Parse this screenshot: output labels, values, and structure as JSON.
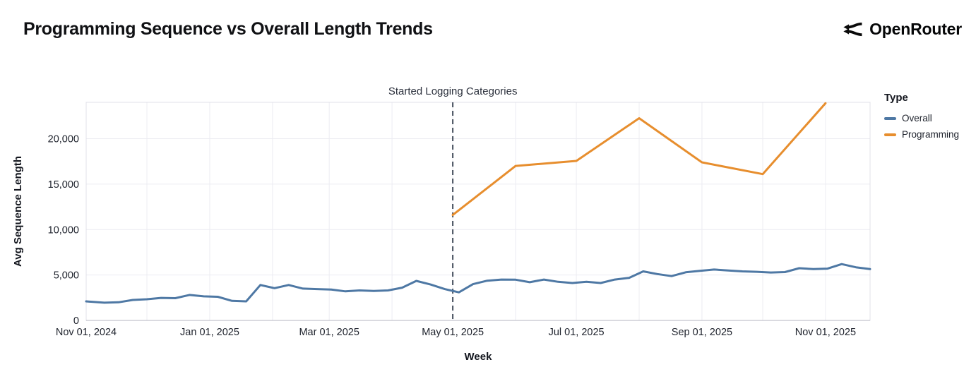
{
  "header": {
    "title": "Programming Sequence vs Overall Length Trends",
    "brand": "OpenRouter"
  },
  "colors": {
    "overall": "#4e78a4",
    "programming": "#e78e2e",
    "annotation_line": "#2d3848",
    "grid": "#ececf2",
    "plot_border": "#e0e0e8",
    "axis_line": "#c4c4ce",
    "text": "#1e222c"
  },
  "chart_data": {
    "type": "line",
    "title": "Programming Sequence vs Overall Length Trends",
    "xlabel": "Week",
    "ylabel": "Avg Sequence Length",
    "grid": true,
    "x_domain": [
      "2024-11-01",
      "2025-11-23"
    ],
    "ylim": [
      0,
      24000
    ],
    "y_ticks": [
      0,
      5000,
      10000,
      15000,
      20000
    ],
    "y_tick_labels": [
      "0",
      "5,000",
      "10,000",
      "15,000",
      "20,000"
    ],
    "x_ticks": [
      {
        "date": "2024-11-01",
        "label": "Nov 01, 2024"
      },
      {
        "date": "2025-01-01",
        "label": "Jan 01, 2025"
      },
      {
        "date": "2025-03-01",
        "label": "Mar 01, 2025"
      },
      {
        "date": "2025-05-01",
        "label": "May 01, 2025"
      },
      {
        "date": "2025-07-01",
        "label": "Jul 01, 2025"
      },
      {
        "date": "2025-09-01",
        "label": "Sep 01, 2025"
      },
      {
        "date": "2025-11-01",
        "label": "Nov 01, 2025"
      }
    ],
    "month_gridlines": [
      "2024-12-01",
      "2025-01-01",
      "2025-02-01",
      "2025-03-01",
      "2025-04-01",
      "2025-05-01",
      "2025-06-01",
      "2025-07-01",
      "2025-08-01",
      "2025-09-01",
      "2025-10-01",
      "2025-11-01"
    ],
    "annotation": {
      "label": "Started Logging Categories",
      "date": "2025-05-01"
    },
    "legend": {
      "title": "Type",
      "position": "right",
      "entries": [
        {
          "name": "Overall",
          "color": "#4e78a4"
        },
        {
          "name": "Programming",
          "color": "#e78e2e"
        }
      ]
    },
    "series": [
      {
        "name": "Overall",
        "color": "#4e78a4",
        "x": [
          "2024-11-01",
          "2024-11-10",
          "2024-11-17",
          "2024-11-24",
          "2024-12-01",
          "2024-12-08",
          "2024-12-15",
          "2024-12-22",
          "2024-12-29",
          "2025-01-05",
          "2025-01-12",
          "2025-01-19",
          "2025-01-26",
          "2025-02-02",
          "2025-02-09",
          "2025-02-16",
          "2025-02-23",
          "2025-03-02",
          "2025-03-09",
          "2025-03-16",
          "2025-03-23",
          "2025-03-30",
          "2025-04-06",
          "2025-04-13",
          "2025-04-20",
          "2025-04-27",
          "2025-05-04",
          "2025-05-11",
          "2025-05-18",
          "2025-05-25",
          "2025-06-01",
          "2025-06-08",
          "2025-06-15",
          "2025-06-22",
          "2025-06-29",
          "2025-07-06",
          "2025-07-13",
          "2025-07-20",
          "2025-07-27",
          "2025-08-03",
          "2025-08-10",
          "2025-08-17",
          "2025-08-24",
          "2025-08-31",
          "2025-09-07",
          "2025-09-14",
          "2025-09-21",
          "2025-09-28",
          "2025-10-05",
          "2025-10-12",
          "2025-10-19",
          "2025-10-26",
          "2025-11-02",
          "2025-11-09",
          "2025-11-16",
          "2025-11-23"
        ],
        "values": [
          2100,
          1950,
          2000,
          2250,
          2330,
          2480,
          2450,
          2800,
          2650,
          2600,
          2150,
          2100,
          3900,
          3550,
          3900,
          3500,
          3450,
          3400,
          3200,
          3300,
          3250,
          3300,
          3600,
          4350,
          3950,
          3450,
          3090,
          3990,
          4370,
          4500,
          4480,
          4200,
          4500,
          4250,
          4120,
          4250,
          4120,
          4500,
          4680,
          5400,
          5100,
          4880,
          5300,
          5450,
          5600,
          5500,
          5400,
          5350,
          5270,
          5320,
          5750,
          5650,
          5700,
          6200,
          5850,
          5650
        ]
      },
      {
        "name": "Programming",
        "color": "#e78e2e",
        "x": [
          "2025-05-01",
          "2025-06-01",
          "2025-07-01",
          "2025-08-01",
          "2025-09-01",
          "2025-10-01",
          "2025-11-01"
        ],
        "values": [
          11600,
          17000,
          17550,
          22250,
          17400,
          16100,
          23900
        ]
      }
    ]
  }
}
